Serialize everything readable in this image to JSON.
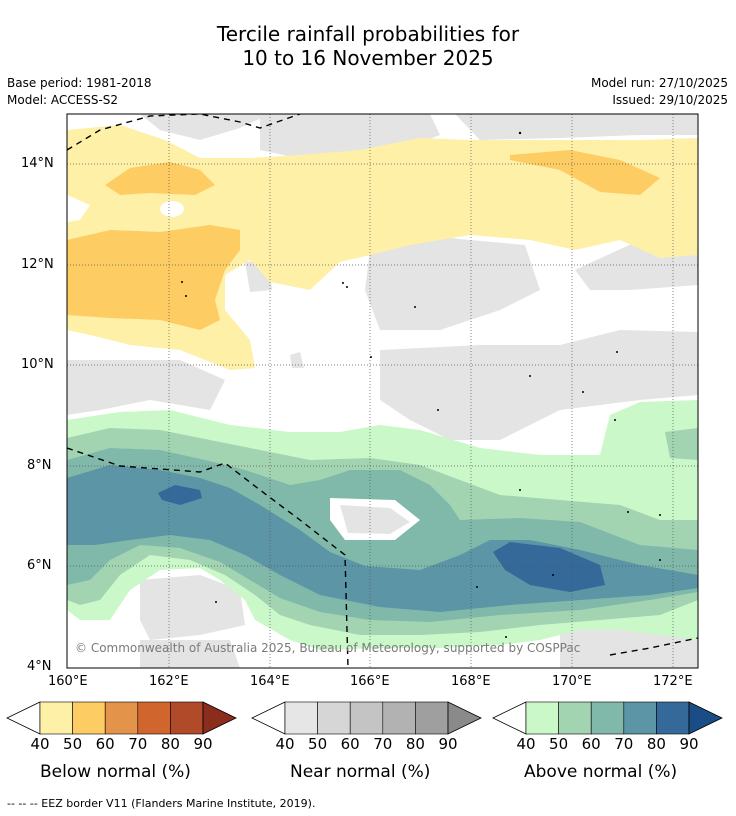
{
  "title_line1": "Tercile rainfall probabilities for",
  "title_line2": "10 to 16 November 2025",
  "base_period": "Base period: 1981-2018",
  "model": "Model: ACCESS-S2",
  "model_run": "Model run: 27/10/2025",
  "issued": "Issued: 29/10/2025",
  "copyright": "© Commonwealth of Australia 2025, Bureau of Meteorology, supported by COSPPac",
  "footer": "--  --  -- EEZ border V11 (Flanders Marine Institute, 2019).",
  "map": {
    "lon_labels": [
      "160°E",
      "162°E",
      "164°E",
      "166°E",
      "168°E",
      "170°E",
      "172°E"
    ],
    "lat_labels": [
      "4°N",
      "6°N",
      "8°N",
      "10°N",
      "12°N",
      "14°N"
    ],
    "lon_range": [
      160,
      172.5
    ],
    "lat_range": [
      4,
      14.9
    ]
  },
  "colorbars": [
    {
      "name": "Below normal (%)",
      "ticks": [
        "40",
        "50",
        "60",
        "70",
        "80",
        "90"
      ],
      "colors": [
        "#fff0a8",
        "#fdcc63",
        "#e3944a",
        "#d0652e",
        "#b04a28",
        "#8b2c1c"
      ]
    },
    {
      "name": "Near normal (%)",
      "ticks": [
        "40",
        "50",
        "60",
        "70",
        "80",
        "90"
      ],
      "colors": [
        "#e6e6e6",
        "#d6d6d6",
        "#c4c4c4",
        "#b2b2b2",
        "#9f9f9f",
        "#8a8a8a"
      ]
    },
    {
      "name": "Above normal (%)",
      "ticks": [
        "40",
        "50",
        "60",
        "70",
        "80",
        "90"
      ],
      "colors": [
        "#caf8c8",
        "#a2d4b2",
        "#80b9aa",
        "#5b95a6",
        "#34699a",
        "#1a4d86"
      ]
    }
  ]
}
